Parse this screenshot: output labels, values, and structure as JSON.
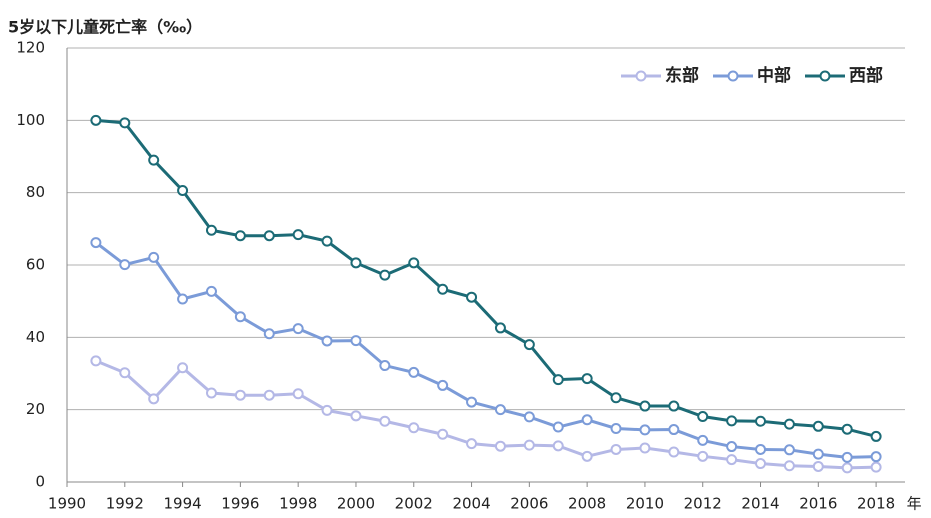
{
  "chart_data": {
    "type": "line",
    "title": "5岁以下儿童死亡率（‰）",
    "x_label": "年",
    "x": [
      1991,
      1992,
      1993,
      1994,
      1995,
      1996,
      1997,
      1998,
      1999,
      2000,
      2001,
      2002,
      2003,
      2004,
      2005,
      2006,
      2007,
      2008,
      2009,
      2010,
      2011,
      2012,
      2013,
      2014,
      2015,
      2016,
      2017,
      2018
    ],
    "series": [
      {
        "name": "东部",
        "color": "#b4b8e6",
        "values": [
          33.5,
          30.2,
          23.0,
          31.6,
          24.6,
          24.0,
          24.0,
          24.4,
          19.8,
          18.3,
          16.8,
          15.0,
          13.2,
          10.6,
          9.9,
          10.2,
          10.0,
          7.1,
          9.0,
          9.4,
          8.3,
          7.1,
          6.2,
          5.1,
          4.5,
          4.3,
          3.9,
          4.1
        ]
      },
      {
        "name": "中部",
        "color": "#7b9bd8",
        "values": [
          66.2,
          60.1,
          62.1,
          50.6,
          52.7,
          45.7,
          41.0,
          42.4,
          39.0,
          39.1,
          32.2,
          30.3,
          26.7,
          22.1,
          20.0,
          18.0,
          15.2,
          17.2,
          14.8,
          14.4,
          14.5,
          11.5,
          9.8,
          9.0,
          8.9,
          7.7,
          6.8,
          7.0
        ]
      },
      {
        "name": "西部",
        "color": "#1c6b76",
        "values": [
          100,
          99.3,
          89.0,
          80.6,
          69.6,
          68.1,
          68.1,
          68.4,
          66.6,
          60.6,
          57.2,
          60.6,
          53.3,
          51.1,
          42.6,
          38.0,
          28.3,
          28.6,
          23.3,
          21.0,
          21.0,
          18.1,
          16.9,
          16.8,
          16.0,
          15.4,
          14.6,
          12.6
        ]
      }
    ],
    "xlim": [
      1990,
      2019
    ],
    "xticks": [
      1990,
      1992,
      1994,
      1996,
      1998,
      2000,
      2002,
      2004,
      2006,
      2008,
      2010,
      2012,
      2014,
      2016,
      2018
    ],
    "ylim": [
      0,
      120
    ],
    "yticks": [
      0,
      20,
      40,
      60,
      80,
      100,
      120
    ],
    "grid": true,
    "legend": "top-right"
  }
}
